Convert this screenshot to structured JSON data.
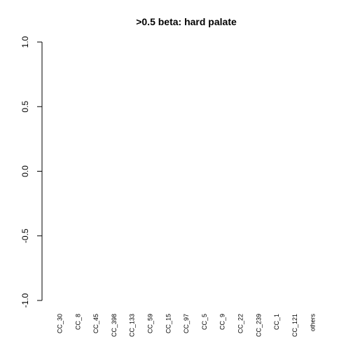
{
  "chart_data": {
    "type": "bar",
    "title": ">0.5 beta:  hard palate",
    "xlabel": "",
    "ylabel": "",
    "ylim": [
      -1.0,
      1.0
    ],
    "yticks": [
      -1.0,
      -0.5,
      0.0,
      0.5,
      1.0
    ],
    "ytick_labels": [
      "-1.0",
      "-0.5",
      "0.0",
      "0.5",
      "1.0"
    ],
    "categories": [
      "CC_30",
      "CC_8",
      "CC_45",
      "CC_398",
      "CC_133",
      "CC_59",
      "CC_15",
      "CC_97",
      "CC_5",
      "CC_9",
      "CC_22",
      "CC_239",
      "CC_1",
      "CC_121",
      "others"
    ],
    "values": [
      0,
      0,
      0,
      0,
      0,
      0,
      0,
      0,
      0,
      0,
      0,
      0,
      0,
      0,
      0
    ],
    "grid": false,
    "legend": "none",
    "colors": {
      "bar_border": "#000000",
      "axis": "#000000",
      "background": "#ffffff"
    }
  }
}
